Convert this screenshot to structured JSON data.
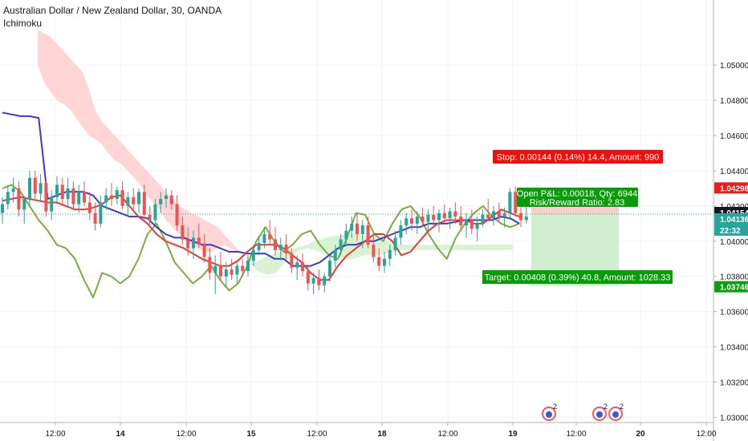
{
  "header": {
    "title": "Australian Dollar / New Zealand Dollar, 30, OANDA",
    "indicator": "Ichimoku"
  },
  "colors": {
    "up": "#26a69a",
    "down": "#ef5350",
    "conversion": "#e53935",
    "base": "#3a3acc",
    "lagging": "#7cad3c",
    "cloud_bear": "#ffd5d5",
    "cloud_bull": "#d9f2d4",
    "stop": "#f50d0d",
    "target": "#099c09",
    "stop_zone": "#f7c6c6",
    "target_zone": "#c9ecc9",
    "last_price": "#131722",
    "current_price": "#26a69a",
    "stop_price": "#ef1a1a",
    "target_price": "#0e9e0e"
  },
  "chart_data": {
    "type": "candlestick",
    "symbol": "Australian Dollar / New Zealand Dollar, 30, OANDA",
    "ylim": [
      1.0297,
      1.0537
    ],
    "y_ticks": [
      "1.05000",
      "1.04800",
      "1.04600",
      "1.04400",
      "1.04200",
      "1.04000",
      "1.03800",
      "1.03600",
      "1.03400",
      "1.03200",
      "1.03000"
    ],
    "x_ticks": [
      "12:00",
      "14",
      "12:00",
      "15",
      "12:00",
      "18",
      "12:00",
      "19",
      "12:00",
      "20",
      "12:00"
    ],
    "price_labels": {
      "stop": "1.04298",
      "last": "1.04154",
      "current": "1.04136",
      "countdown": "22:32",
      "target": "1.03746"
    },
    "position": {
      "stop_text": "Stop: 0.00144 (0.14%) 14.4, Amount: 990",
      "target_text": "Target: 0.00408 (0.39%) 40.8, Amount: 1028.33",
      "pnl_text": "Open P&L: 0.00018, Qty: 6944",
      "ratio_text": "Risk/Reward Ratio: 2.83",
      "entry": 1.04154,
      "stop": 1.04298,
      "target": 1.03746
    },
    "events": [
      {
        "count": "2"
      },
      {
        "count": "2"
      },
      {
        "count": "2"
      }
    ],
    "ohlc": [
      [
        1.0416,
        1.0425,
        1.041,
        1.0421
      ],
      [
        1.0421,
        1.0432,
        1.0418,
        1.0428
      ],
      [
        1.0428,
        1.0436,
        1.0422,
        1.043
      ],
      [
        1.043,
        1.0434,
        1.0414,
        1.0418
      ],
      [
        1.0418,
        1.0426,
        1.041,
        1.0424
      ],
      [
        1.0424,
        1.044,
        1.042,
        1.0436
      ],
      [
        1.0436,
        1.044,
        1.0424,
        1.0427
      ],
      [
        1.0427,
        1.0438,
        1.0422,
        1.0433
      ],
      [
        1.0433,
        1.0436,
        1.0414,
        1.0417
      ],
      [
        1.0417,
        1.0429,
        1.0412,
        1.0425
      ],
      [
        1.0425,
        1.0437,
        1.0421,
        1.0432
      ],
      [
        1.0432,
        1.0436,
        1.042,
        1.0424
      ],
      [
        1.0424,
        1.0436,
        1.0419,
        1.043
      ],
      [
        1.043,
        1.0434,
        1.0418,
        1.0421
      ],
      [
        1.0421,
        1.0432,
        1.0416,
        1.0428
      ],
      [
        1.0428,
        1.0434,
        1.042,
        1.0422
      ],
      [
        1.0422,
        1.0428,
        1.0412,
        1.0416
      ],
      [
        1.0416,
        1.0422,
        1.0406,
        1.041
      ],
      [
        1.041,
        1.0426,
        1.0408,
        1.0422
      ],
      [
        1.0422,
        1.043,
        1.0418,
        1.0426
      ],
      [
        1.0426,
        1.0433,
        1.042,
        1.0424
      ],
      [
        1.0424,
        1.0431,
        1.0421,
        1.0429
      ],
      [
        1.0429,
        1.0434,
        1.0418,
        1.042
      ],
      [
        1.042,
        1.0428,
        1.0414,
        1.0425
      ],
      [
        1.0425,
        1.043,
        1.0418,
        1.0421
      ],
      [
        1.0421,
        1.043,
        1.0416,
        1.0428
      ],
      [
        1.0428,
        1.0432,
        1.0412,
        1.0415
      ],
      [
        1.0415,
        1.042,
        1.0408,
        1.0412
      ],
      [
        1.0412,
        1.0424,
        1.0409,
        1.0421
      ],
      [
        1.0421,
        1.0428,
        1.0416,
        1.0424
      ],
      [
        1.0424,
        1.043,
        1.0419,
        1.0426
      ],
      [
        1.0426,
        1.0429,
        1.0418,
        1.0421
      ],
      [
        1.0421,
        1.0426,
        1.0406,
        1.0409
      ],
      [
        1.0409,
        1.0414,
        1.0398,
        1.0401
      ],
      [
        1.0401,
        1.0408,
        1.0392,
        1.0396
      ],
      [
        1.0396,
        1.0406,
        1.039,
        1.0402
      ],
      [
        1.0402,
        1.041,
        1.0396,
        1.0398
      ],
      [
        1.0398,
        1.0404,
        1.0388,
        1.0391
      ],
      [
        1.0391,
        1.0396,
        1.0378,
        1.0382
      ],
      [
        1.0382,
        1.0392,
        1.037,
        1.0386
      ],
      [
        1.0386,
        1.0394,
        1.0378,
        1.038
      ],
      [
        1.038,
        1.0388,
        1.0374,
        1.0384
      ],
      [
        1.0384,
        1.039,
        1.0378,
        1.0381
      ],
      [
        1.0381,
        1.0388,
        1.0376,
        1.0386
      ],
      [
        1.0386,
        1.039,
        1.038,
        1.0383
      ],
      [
        1.0383,
        1.0392,
        1.038,
        1.0389
      ],
      [
        1.0389,
        1.0398,
        1.0386,
        1.0395
      ],
      [
        1.0395,
        1.0403,
        1.0392,
        1.0399
      ],
      [
        1.0399,
        1.0408,
        1.0396,
        1.0404
      ],
      [
        1.0404,
        1.0412,
        1.0398,
        1.0401
      ],
      [
        1.0401,
        1.0408,
        1.0392,
        1.0395
      ],
      [
        1.0395,
        1.0402,
        1.0389,
        1.0398
      ],
      [
        1.0398,
        1.0404,
        1.039,
        1.0393
      ],
      [
        1.0393,
        1.0396,
        1.0382,
        1.0385
      ],
      [
        1.0385,
        1.0392,
        1.0378,
        1.0388
      ],
      [
        1.0388,
        1.0393,
        1.038,
        1.0383
      ],
      [
        1.0383,
        1.0386,
        1.0372,
        1.0376
      ],
      [
        1.0376,
        1.0382,
        1.037,
        1.0379
      ],
      [
        1.0379,
        1.0384,
        1.0372,
        1.0375
      ],
      [
        1.0375,
        1.0382,
        1.0371,
        1.038
      ],
      [
        1.038,
        1.0392,
        1.0377,
        1.0389
      ],
      [
        1.0389,
        1.0398,
        1.0385,
        1.0395
      ],
      [
        1.0395,
        1.0404,
        1.0392,
        1.0401
      ],
      [
        1.0401,
        1.041,
        1.0397,
        1.0406
      ],
      [
        1.0406,
        1.0414,
        1.0402,
        1.041
      ],
      [
        1.041,
        1.0416,
        1.04,
        1.0404
      ],
      [
        1.0404,
        1.0412,
        1.0396,
        1.0409
      ],
      [
        1.0409,
        1.0414,
        1.0396,
        1.0398
      ],
      [
        1.0398,
        1.0404,
        1.0388,
        1.0391
      ],
      [
        1.0391,
        1.0396,
        1.0383,
        1.0386
      ],
      [
        1.0386,
        1.0394,
        1.0382,
        1.039
      ],
      [
        1.039,
        1.0398,
        1.0386,
        1.0395
      ],
      [
        1.0395,
        1.0406,
        1.0392,
        1.0402
      ],
      [
        1.0402,
        1.0412,
        1.0398,
        1.0409
      ],
      [
        1.0409,
        1.0416,
        1.0404,
        1.0413
      ],
      [
        1.0413,
        1.0418,
        1.0406,
        1.041
      ],
      [
        1.041,
        1.0417,
        1.0404,
        1.0414
      ],
      [
        1.0414,
        1.0419,
        1.0408,
        1.0411
      ],
      [
        1.0411,
        1.0418,
        1.0406,
        1.0415
      ],
      [
        1.0415,
        1.042,
        1.0408,
        1.0412
      ],
      [
        1.0412,
        1.0418,
        1.0405,
        1.0416
      ],
      [
        1.0416,
        1.0421,
        1.041,
        1.0413
      ],
      [
        1.0413,
        1.0419,
        1.0407,
        1.0417
      ],
      [
        1.0417,
        1.0422,
        1.041,
        1.0414
      ],
      [
        1.0414,
        1.042,
        1.0406,
        1.0409
      ],
      [
        1.0409,
        1.0416,
        1.0402,
        1.0412
      ],
      [
        1.0412,
        1.0418,
        1.0404,
        1.0407
      ],
      [
        1.0407,
        1.0414,
        1.04,
        1.041
      ],
      [
        1.041,
        1.0418,
        1.0408,
        1.0415
      ],
      [
        1.0415,
        1.0424,
        1.0412,
        1.0413
      ],
      [
        1.0413,
        1.042,
        1.0409,
        1.0417
      ],
      [
        1.0417,
        1.0422,
        1.0411,
        1.0414
      ],
      [
        1.0414,
        1.0419,
        1.0408,
        1.0416
      ],
      [
        1.0416,
        1.043,
        1.0412,
        1.0428
      ],
      [
        1.0428,
        1.0431,
        1.0414,
        1.0416
      ],
      [
        1.0416,
        1.042,
        1.0408,
        1.0412
      ],
      [
        1.0412,
        1.042,
        1.041,
        1.0414
      ]
    ],
    "conversion": [
      1.0423,
      1.0424,
      1.0425,
      1.0424,
      1.0423,
      1.0422,
      1.0422,
      1.042,
      1.0418,
      1.0418,
      1.0419,
      1.0421,
      1.0425,
      1.0426,
      1.042,
      1.0414,
      1.041,
      1.0404,
      1.04,
      1.0398,
      1.0396,
      1.0393,
      1.039,
      1.0388,
      1.0386,
      1.0386,
      1.0389,
      1.0394,
      1.0398,
      1.0398,
      1.0398,
      1.0396,
      1.0392,
      1.0388,
      1.0382,
      1.0378,
      1.0378,
      1.0386,
      1.0392,
      1.0396,
      1.04,
      1.0404,
      1.0404,
      1.04,
      1.0392,
      1.0394,
      1.04,
      1.0406,
      1.041,
      1.0412,
      1.0412,
      1.0412,
      1.041,
      1.041,
      1.0414,
      1.0418,
      1.0416,
      1.0414
    ],
    "base": [
      1.0473,
      1.0472,
      1.0471,
      1.0471,
      1.047,
      1.0424,
      1.0426,
      1.0428,
      1.0428,
      1.0428,
      1.0426,
      1.042,
      1.0418,
      1.0416,
      1.0414,
      1.0414,
      1.0413,
      1.0408,
      1.0404,
      1.0402,
      1.0402,
      1.04,
      1.0398,
      1.0398,
      1.0396,
      1.0394,
      1.0394,
      1.0393,
      1.0393,
      1.0393,
      1.039,
      1.039,
      1.0386,
      1.0386,
      1.0386,
      1.0388,
      1.0392,
      1.0396,
      1.0398,
      1.0398,
      1.04,
      1.04,
      1.0402,
      1.0404,
      1.0406,
      1.0408,
      1.0408,
      1.041,
      1.041,
      1.041,
      1.0411,
      1.0412,
      1.0412,
      1.0412,
      1.0412,
      1.0414,
      1.0413,
      1.041
    ],
    "lagging": [
      1.043,
      1.0432,
      1.0428,
      1.042,
      1.0412,
      1.0406,
      1.0398,
      1.0396,
      1.039,
      1.0378,
      1.0368,
      1.0382,
      1.038,
      1.0376,
      1.038,
      1.039,
      1.0404,
      1.041,
      1.04,
      1.0388,
      1.0382,
      1.0376,
      1.038,
      1.0386,
      1.0378,
      1.0372,
      1.0376,
      1.0386,
      1.04,
      1.0408,
      1.04,
      1.0394,
      1.0398,
      1.0404,
      1.0406,
      1.0398,
      1.0392,
      1.039,
      1.0402,
      1.0416,
      1.0415,
      1.0404,
      1.04,
      1.041,
      1.0418,
      1.042,
      1.0414,
      1.0404,
      1.0396,
      1.039,
      1.0402,
      1.041,
      1.0416,
      1.042,
      1.0414,
      1.041,
      1.0408,
      1.041
    ],
    "span_a": [
      1.05,
      1.049,
      1.0485,
      1.048,
      1.0478,
      1.0475,
      1.047,
      1.0465,
      1.046,
      1.0458,
      1.0455,
      1.045,
      1.0446,
      1.0444,
      1.044,
      1.0436,
      1.0432,
      1.0426,
      1.0422,
      1.0418,
      1.0412,
      1.0408,
      1.0404,
      1.04,
      1.0398,
      1.0396,
      1.0394,
      1.0394,
      1.0396,
      1.0398,
      1.0396,
      1.0394,
      1.0392,
      1.039,
      1.0388,
      1.039,
      1.0392,
      1.0393,
      1.0394,
      1.0395,
      1.0396,
      1.0397,
      1.0398,
      1.04,
      1.0401,
      1.0402,
      1.0403,
      1.0403,
      1.0404,
      1.0404,
      1.0404,
      1.0403,
      1.0402,
      1.0402,
      1.0401,
      1.04,
      1.0398,
      1.0398,
      1.0398,
      1.0398,
      1.0398,
      1.0398,
      1.0398,
      1.0398,
      1.0398,
      1.0398,
      1.0398,
      1.0398,
      1.0398,
      1.0398,
      1.0398,
      1.0398,
      1.0398,
      1.0398,
      1.0398
    ],
    "span_b": [
      1.052,
      1.0518,
      1.0516,
      1.0512,
      1.0508,
      1.0504,
      1.05,
      1.0496,
      1.0486,
      1.0474,
      1.0468,
      1.0464,
      1.046,
      1.0456,
      1.0452,
      1.0448,
      1.0444,
      1.044,
      1.0436,
      1.0432,
      1.0428,
      1.0424,
      1.042,
      1.0418,
      1.0416,
      1.0414,
      1.0412,
      1.041,
      1.0408,
      1.0404,
      1.04,
      1.0396,
      1.0392,
      1.0388,
      1.0384,
      1.0382,
      1.0381,
      1.0382,
      1.0386,
      1.039,
      1.0393,
      1.0395,
      1.0396,
      1.0395,
      1.0394,
      1.0393,
      1.0392,
      1.0391,
      1.039,
      1.039,
      1.0391,
      1.0392,
      1.0392,
      1.0392,
      1.0393,
      1.0394,
      1.0394,
      1.0395,
      1.0395,
      1.0395,
      1.0395,
      1.0395,
      1.0395,
      1.0395,
      1.0395,
      1.0395,
      1.0395,
      1.0395,
      1.0395,
      1.0395,
      1.0395,
      1.0395,
      1.0395,
      1.0395,
      1.0395
    ]
  }
}
